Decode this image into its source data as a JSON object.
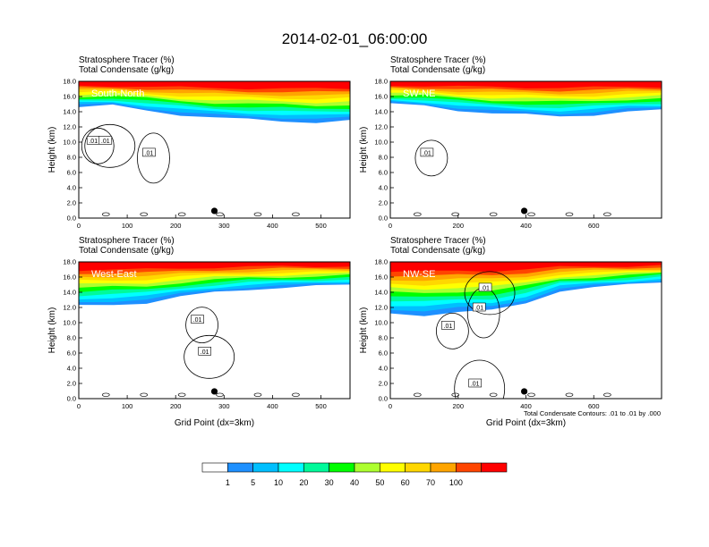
{
  "figure": {
    "title": "2014-02-01_06:00:00",
    "header_left": "Stratosphere Tracer   (%)",
    "header_left2": "Total Condensate   (g/kg)",
    "contour_note": "Total Condensate Contours: .01 to .01 by .000"
  },
  "chart_data": [
    {
      "type": "heatmap",
      "panel_label": "South-North",
      "title": "Stratosphere Tracer   (%)",
      "subtitle": "Total Condensate   (g/kg)",
      "ylabel": "Height (km)",
      "xlabel": "",
      "xlim": [
        0,
        560
      ],
      "ylim": [
        0,
        18
      ],
      "xticks": [
        0,
        100,
        200,
        300,
        400,
        500
      ],
      "yticks": [
        0.0,
        2.0,
        4.0,
        6.0,
        8.0,
        10.0,
        12.0,
        14.0,
        16.0,
        18.0
      ],
      "tracer_base_km": [
        14.6,
        14.8,
        14.2,
        13.6,
        13.2,
        13.0,
        12.8,
        12.6,
        12.8
      ],
      "contour_labels": [
        ".01",
        ".01",
        ".01"
      ],
      "marker_x": 280
    },
    {
      "type": "heatmap",
      "panel_label": "SW-NE",
      "title": "Stratosphere Tracer   (%)",
      "subtitle": "Total Condensate   (g/kg)",
      "ylabel": "Height (km)",
      "xlabel": "",
      "xlim": [
        0,
        800
      ],
      "ylim": [
        0,
        18
      ],
      "xticks": [
        0,
        200,
        400,
        600
      ],
      "yticks": [
        0.0,
        2.0,
        4.0,
        6.0,
        8.0,
        10.0,
        12.0,
        14.0,
        16.0,
        18.0
      ],
      "tracer_base_km": [
        15.0,
        14.8,
        14.2,
        13.8,
        13.6,
        13.4,
        13.6,
        14.0,
        14.2
      ],
      "contour_labels": [
        ".01"
      ],
      "marker_x": 395
    },
    {
      "type": "heatmap",
      "panel_label": "West-East",
      "title": "Stratosphere Tracer   (%)",
      "subtitle": "Total Condensate   (g/kg)",
      "ylabel": "Height (km)",
      "xlabel": "Grid Point (dx=3km)",
      "xlim": [
        0,
        560
      ],
      "ylim": [
        0,
        18
      ],
      "xticks": [
        0,
        100,
        200,
        300,
        400,
        500
      ],
      "yticks": [
        0.0,
        2.0,
        4.0,
        6.0,
        8.0,
        10.0,
        12.0,
        14.0,
        16.0,
        18.0
      ],
      "tracer_base_km": [
        12.2,
        12.4,
        12.6,
        13.4,
        14.0,
        14.4,
        14.6,
        14.8,
        15.0
      ],
      "contour_labels": [
        ".01",
        ".01"
      ],
      "marker_x": 280
    },
    {
      "type": "heatmap",
      "panel_label": "NW-SE",
      "title": "Stratosphere Tracer   (%)",
      "subtitle": "Total Condensate   (g/kg)",
      "ylabel": "Height (km)",
      "xlabel": "Grid Point (dx=3km)",
      "xlim": [
        0,
        800
      ],
      "ylim": [
        0,
        18
      ],
      "xticks": [
        0,
        200,
        400,
        600
      ],
      "yticks": [
        0.0,
        2.0,
        4.0,
        6.0,
        8.0,
        10.0,
        12.0,
        14.0,
        16.0,
        18.0
      ],
      "tracer_base_km": [
        11.2,
        11.0,
        11.4,
        11.6,
        12.6,
        14.2,
        14.6,
        15.0,
        15.4
      ],
      "contour_labels": [
        ".01",
        ".01",
        ".01",
        ".01"
      ],
      "marker_x": 395
    }
  ],
  "colorbar": {
    "labels": [
      "1",
      "5",
      "10",
      "20",
      "30",
      "40",
      "50",
      "60",
      "70",
      "100"
    ],
    "colors": [
      "#ffffff",
      "#1e90ff",
      "#00bfff",
      "#00ffff",
      "#00fa9a",
      "#00ff00",
      "#adff2f",
      "#ffff00",
      "#ffd700",
      "#ffa500",
      "#ff4500",
      "#ff0000"
    ]
  }
}
